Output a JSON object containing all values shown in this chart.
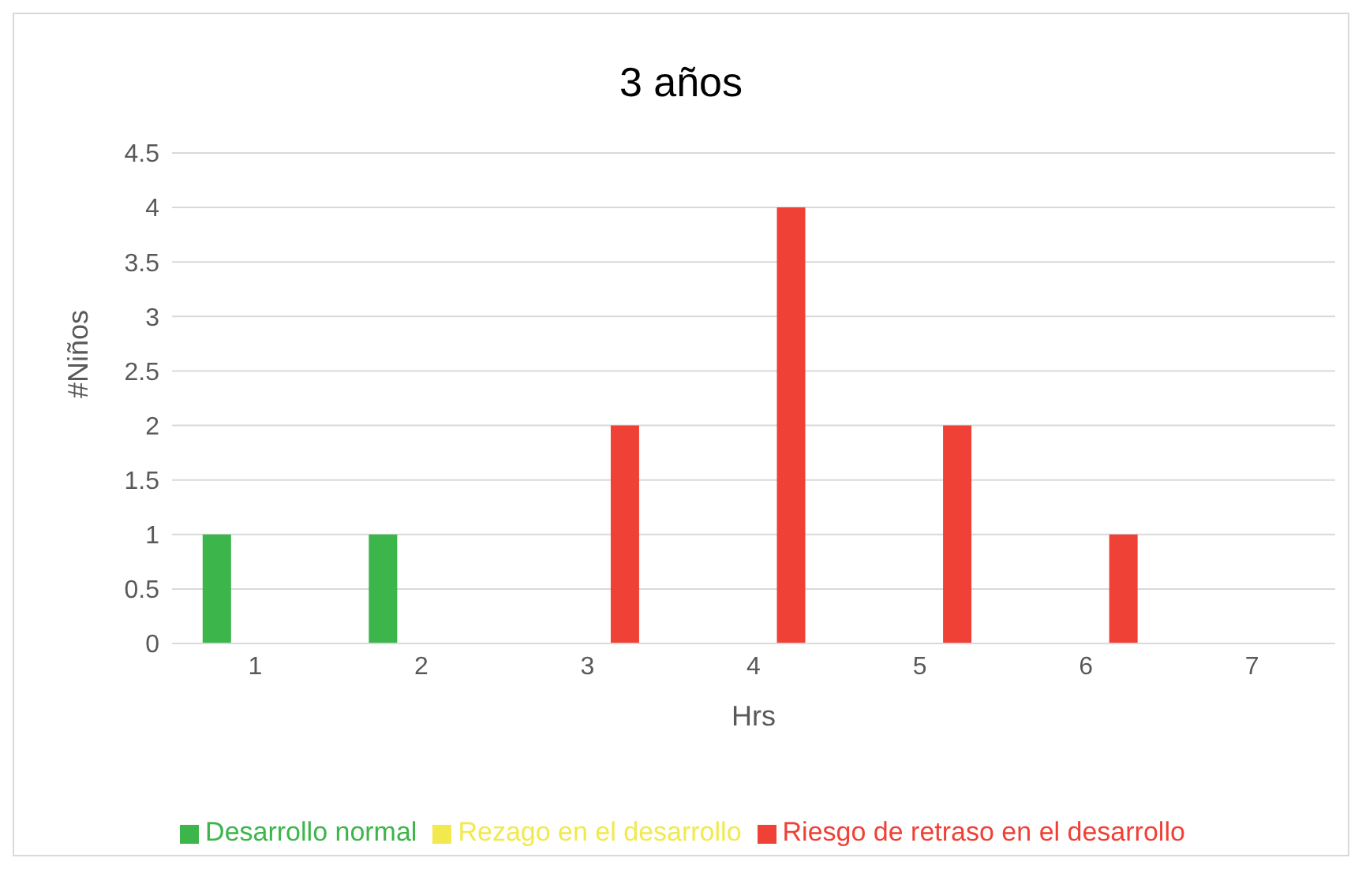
{
  "chart_data": {
    "type": "bar",
    "title": "3 años",
    "xlabel": "Hrs",
    "ylabel": "#Niños",
    "categories": [
      "1",
      "2",
      "3",
      "4",
      "5",
      "6",
      "7"
    ],
    "series": [
      {
        "name": "Desarrollo normal",
        "color": "#3cb54a",
        "values": [
          1,
          1,
          0,
          0,
          0,
          0,
          0
        ]
      },
      {
        "name": "Rezago en el desarrollo",
        "color": "#f2e94e",
        "values": [
          0,
          0,
          0,
          0,
          0,
          0,
          0
        ]
      },
      {
        "name": "Riesgo de retraso en el desarrollo",
        "color": "#ef4136",
        "values": [
          0,
          0,
          2,
          4,
          2,
          1,
          0
        ]
      }
    ],
    "ylim": [
      0,
      4.5
    ],
    "yticks": [
      0,
      0.5,
      1,
      1.5,
      2,
      2.5,
      3,
      3.5,
      4,
      4.5
    ],
    "grid": "y",
    "legend": "bottom"
  }
}
